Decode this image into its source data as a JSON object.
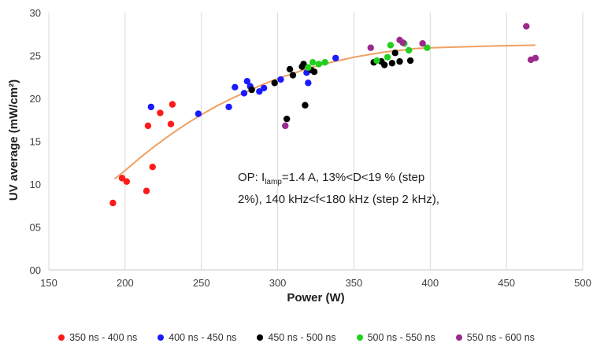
{
  "chart_data": {
    "type": "scatter",
    "title": "",
    "xlabel": "Power (W)",
    "ylabel": "UV average (mW/cm²)",
    "xlim": [
      150,
      500
    ],
    "ylim": [
      0,
      30
    ],
    "xticks": [
      "150",
      "200",
      "250",
      "300",
      "350",
      "400",
      "450",
      "500"
    ],
    "yticks": [
      "00",
      "05",
      "10",
      "15",
      "20",
      "25",
      "30"
    ],
    "grid": "vertical",
    "legend_position": "bottom",
    "annotation": {
      "line1_pre": "OP: I",
      "line1_sub": "lamp",
      "line1_post": "=1.4 A, 13%<D<19 % (step",
      "line2": "2%), 140 kHz<f<180 kHz (step 2 kHz),"
    },
    "trendline": {
      "color": "#f0a060",
      "points": [
        [
          193,
          10.6
        ],
        [
          200,
          11.6
        ],
        [
          210,
          13.1
        ],
        [
          220,
          14.5
        ],
        [
          230,
          15.8
        ],
        [
          240,
          17.0
        ],
        [
          250,
          18.1
        ],
        [
          260,
          19.1
        ],
        [
          270,
          20.0
        ],
        [
          280,
          20.8
        ],
        [
          290,
          21.6
        ],
        [
          300,
          22.3
        ],
        [
          310,
          22.9
        ],
        [
          320,
          23.5
        ],
        [
          330,
          24.0
        ],
        [
          340,
          24.4
        ],
        [
          350,
          24.8
        ],
        [
          360,
          25.1
        ],
        [
          370,
          25.4
        ],
        [
          380,
          25.6
        ],
        [
          390,
          25.8
        ],
        [
          400,
          25.9
        ],
        [
          420,
          26.0
        ],
        [
          440,
          26.1
        ],
        [
          469,
          26.2
        ]
      ]
    },
    "series": [
      {
        "name": "350 ns - 400 ns",
        "color": "#ff1a1a",
        "points": [
          [
            192,
            7.8
          ],
          [
            198,
            10.7
          ],
          [
            201,
            10.3
          ],
          [
            214,
            9.2
          ],
          [
            215,
            16.8
          ],
          [
            218,
            12.0
          ],
          [
            223,
            18.3
          ],
          [
            230,
            17.0
          ],
          [
            231,
            19.3
          ]
        ]
      },
      {
        "name": "400 ns - 450 ns",
        "color": "#1a1aff",
        "points": [
          [
            217,
            19.0
          ],
          [
            248,
            18.2
          ],
          [
            268,
            19.0
          ],
          [
            272,
            21.3
          ],
          [
            278,
            20.6
          ],
          [
            280,
            22.0
          ],
          [
            282,
            21.4
          ],
          [
            288,
            20.8
          ],
          [
            291,
            21.2
          ],
          [
            302,
            22.2
          ],
          [
            319,
            23.0
          ],
          [
            320,
            21.8
          ],
          [
            338,
            24.7
          ]
        ]
      },
      {
        "name": "450 ns - 500 ns",
        "color": "#000000",
        "points": [
          [
            283,
            21.0
          ],
          [
            298,
            21.8
          ],
          [
            306,
            17.6
          ],
          [
            308,
            23.4
          ],
          [
            310,
            22.7
          ],
          [
            316,
            23.7
          ],
          [
            317,
            24.0
          ],
          [
            318,
            19.2
          ],
          [
            322,
            23.3
          ],
          [
            324,
            23.1
          ],
          [
            363,
            24.2
          ],
          [
            368,
            24.3
          ],
          [
            370,
            23.9
          ],
          [
            375,
            24.1
          ],
          [
            377,
            25.3
          ],
          [
            380,
            24.3
          ],
          [
            387,
            24.4
          ]
        ]
      },
      {
        "name": "500 ns - 550 ns",
        "color": "#1fd11f",
        "points": [
          [
            320,
            23.6
          ],
          [
            323,
            24.2
          ],
          [
            327,
            24.0
          ],
          [
            331,
            24.2
          ],
          [
            365,
            24.4
          ],
          [
            372,
            24.8
          ],
          [
            374,
            26.2
          ],
          [
            383,
            26.4
          ],
          [
            386,
            25.6
          ],
          [
            398,
            25.9
          ]
        ]
      },
      {
        "name": "550 ns - 600 ns",
        "color": "#9c2a8c",
        "points": [
          [
            305,
            16.8
          ],
          [
            361,
            25.9
          ],
          [
            380,
            26.8
          ],
          [
            382,
            26.5
          ],
          [
            395,
            26.4
          ],
          [
            463,
            28.4
          ],
          [
            466,
            24.5
          ],
          [
            469,
            24.7
          ]
        ]
      }
    ]
  }
}
